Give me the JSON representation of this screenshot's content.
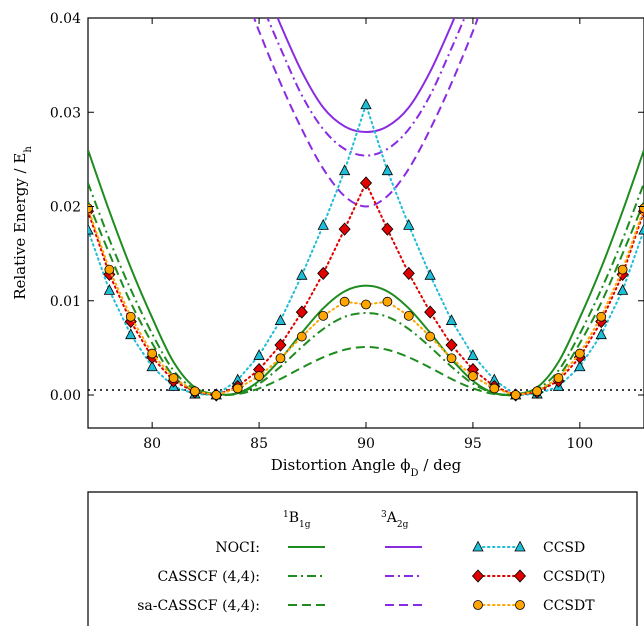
{
  "chart_data": {
    "type": "line",
    "title": "",
    "xlabel": "Distortion Angle ϕ",
    "xlabel_sub": "D",
    "xlabel_unit": " / deg",
    "ylabel": "Relative Energy / E",
    "ylabel_sub": "h",
    "xlim": [
      77.0,
      103.0
    ],
    "ylim": [
      -0.0035,
      0.04
    ],
    "x_ticks": [
      80,
      85,
      90,
      95,
      100
    ],
    "x_tick_labels": [
      "80",
      "85",
      "90",
      "95",
      "100"
    ],
    "y_ticks": [
      0.0,
      0.01,
      0.02,
      0.03,
      0.04
    ],
    "y_tick_labels": [
      "0.00",
      "0.01",
      "0.02",
      "0.03",
      "0.04"
    ],
    "grid": false,
    "legend_placement": "below",
    "legend": {
      "col_b1g": "B",
      "col_b1g_sup": "1",
      "col_b1g_sub": "1g",
      "col_a2g": "A",
      "col_a2g_sup": "3",
      "col_a2g_sub": "2g",
      "row_noci": "NOCI:",
      "row_casscf": "CASSCF (4,4):",
      "row_sacasscf": "sa-CASSCF (4,4):",
      "ccsd": "CCSD",
      "ccsdt_paren": "CCSD(T)",
      "ccsdt": "CCSDT"
    },
    "colors": {
      "b1g": "#1e8c1e",
      "a2g": "#8a2be2",
      "ccsd": "#1fbdd6",
      "ccsd_t": "#e00000",
      "ccsdt": "#ffa500"
    },
    "series": [
      {
        "name": "NOCI",
        "state": "1B1g",
        "style": "solid",
        "points": [
          [
            77,
            0.026
          ],
          [
            78,
            0.0195
          ],
          [
            79,
            0.0135
          ],
          [
            80,
            0.0082
          ],
          [
            81,
            0.0035
          ],
          [
            82,
            0.0008
          ],
          [
            83,
            0.0001
          ],
          [
            84,
            0.0002
          ],
          [
            85,
            0.0015
          ],
          [
            86,
            0.0038
          ],
          [
            87,
            0.0066
          ],
          [
            88,
            0.0092
          ],
          [
            89,
            0.011
          ],
          [
            90,
            0.0116
          ],
          [
            91,
            0.011
          ],
          [
            92,
            0.0092
          ],
          [
            93,
            0.0066
          ],
          [
            94,
            0.0038
          ],
          [
            95,
            0.0015
          ],
          [
            96,
            0.0002
          ],
          [
            97,
            0.0001
          ],
          [
            98,
            0.0008
          ],
          [
            99,
            0.0035
          ],
          [
            100,
            0.0082
          ],
          [
            101,
            0.0135
          ],
          [
            102,
            0.0195
          ],
          [
            103,
            0.026
          ]
        ]
      },
      {
        "name": "CASSCF (4,4)",
        "state": "1B1g",
        "style": "dashdot",
        "points": [
          [
            77,
            0.0225
          ],
          [
            78,
            0.0165
          ],
          [
            79,
            0.0112
          ],
          [
            80,
            0.0065
          ],
          [
            81,
            0.0026
          ],
          [
            82,
            0.0006
          ],
          [
            83,
            0.0
          ],
          [
            84,
            0.0002
          ],
          [
            85,
            0.0012
          ],
          [
            86,
            0.003
          ],
          [
            87,
            0.0051
          ],
          [
            88,
            0.007
          ],
          [
            89,
            0.0083
          ],
          [
            90,
            0.0087
          ],
          [
            91,
            0.0083
          ],
          [
            92,
            0.007
          ],
          [
            93,
            0.0051
          ],
          [
            94,
            0.003
          ],
          [
            95,
            0.0012
          ],
          [
            96,
            0.0002
          ],
          [
            97,
            0.0
          ],
          [
            98,
            0.0006
          ],
          [
            99,
            0.0026
          ],
          [
            100,
            0.0065
          ],
          [
            101,
            0.0112
          ],
          [
            102,
            0.0165
          ],
          [
            103,
            0.0225
          ]
        ]
      },
      {
        "name": "sa-CASSCF (4,4)",
        "state": "1B1g",
        "style": "dashed",
        "points": [
          [
            77,
            0.0205
          ],
          [
            78,
            0.015
          ],
          [
            79,
            0.0098
          ],
          [
            80,
            0.0055
          ],
          [
            81,
            0.002
          ],
          [
            82,
            0.0004
          ],
          [
            83,
            0.0
          ],
          [
            84,
            0.0001
          ],
          [
            85,
            0.0007
          ],
          [
            86,
            0.0017
          ],
          [
            87,
            0.0029
          ],
          [
            88,
            0.004
          ],
          [
            89,
            0.0048
          ],
          [
            90,
            0.0051
          ],
          [
            91,
            0.0048
          ],
          [
            92,
            0.004
          ],
          [
            93,
            0.0029
          ],
          [
            94,
            0.0017
          ],
          [
            95,
            0.0007
          ],
          [
            96,
            0.0001
          ],
          [
            97,
            0.0
          ],
          [
            98,
            0.0004
          ],
          [
            99,
            0.002
          ],
          [
            100,
            0.0055
          ],
          [
            101,
            0.0098
          ],
          [
            102,
            0.015
          ],
          [
            103,
            0.0205
          ]
        ]
      },
      {
        "name": "NOCI",
        "state": "3A2g",
        "style": "solid",
        "points": [
          [
            85.8,
            0.0405
          ],
          [
            86,
            0.0393
          ],
          [
            87,
            0.0343
          ],
          [
            88,
            0.0305
          ],
          [
            89,
            0.0285
          ],
          [
            90,
            0.0279
          ],
          [
            91,
            0.0285
          ],
          [
            92,
            0.0305
          ],
          [
            93,
            0.0343
          ],
          [
            94,
            0.0393
          ],
          [
            94.2,
            0.0405
          ]
        ]
      },
      {
        "name": "CASSCF (4,4)",
        "state": "3A2g",
        "style": "dashdot",
        "points": [
          [
            85.3,
            0.0405
          ],
          [
            86,
            0.0368
          ],
          [
            87,
            0.0318
          ],
          [
            88,
            0.0282
          ],
          [
            89,
            0.0261
          ],
          [
            90,
            0.0254
          ],
          [
            91,
            0.0261
          ],
          [
            92,
            0.0282
          ],
          [
            93,
            0.0318
          ],
          [
            94,
            0.0368
          ],
          [
            94.7,
            0.0405
          ]
        ]
      },
      {
        "name": "sa-CASSCF (4,4)",
        "state": "3A2g",
        "style": "dashed",
        "points": [
          [
            84.7,
            0.0405
          ],
          [
            85,
            0.0386
          ],
          [
            86,
            0.0331
          ],
          [
            87,
            0.0282
          ],
          [
            88,
            0.024
          ],
          [
            89,
            0.0211
          ],
          [
            90,
            0.02
          ],
          [
            91,
            0.0211
          ],
          [
            92,
            0.024
          ],
          [
            93,
            0.0282
          ],
          [
            94,
            0.0331
          ],
          [
            95,
            0.0386
          ],
          [
            95.3,
            0.0405
          ]
        ]
      },
      {
        "name": "CCSD",
        "marker": "triangle",
        "points": [
          [
            77,
            0.0175
          ],
          [
            78,
            0.0111
          ],
          [
            79,
            0.0064
          ],
          [
            80,
            0.003
          ],
          [
            81,
            0.0009
          ],
          [
            82,
            0.0001
          ],
          [
            83,
            0.0
          ],
          [
            84,
            0.0016
          ],
          [
            85,
            0.0042
          ],
          [
            86,
            0.0079
          ],
          [
            87,
            0.0127
          ],
          [
            88,
            0.018
          ],
          [
            89,
            0.0238
          ],
          [
            90,
            0.0308
          ],
          [
            91,
            0.0238
          ],
          [
            92,
            0.018
          ],
          [
            93,
            0.0127
          ],
          [
            94,
            0.0079
          ],
          [
            95,
            0.0042
          ],
          [
            96,
            0.0016
          ],
          [
            97,
            0.0
          ],
          [
            98,
            0.0001
          ],
          [
            99,
            0.0009
          ],
          [
            100,
            0.003
          ],
          [
            101,
            0.0064
          ],
          [
            102,
            0.0111
          ],
          [
            103,
            0.0175
          ]
        ]
      },
      {
        "name": "CCSD(T)",
        "marker": "diamond",
        "points": [
          [
            77,
            0.0195
          ],
          [
            78,
            0.0128
          ],
          [
            79,
            0.0078
          ],
          [
            80,
            0.004
          ],
          [
            81,
            0.0015
          ],
          [
            82,
            0.0003
          ],
          [
            83,
            0.0
          ],
          [
            84,
            0.0009
          ],
          [
            85,
            0.0027
          ],
          [
            86,
            0.0053
          ],
          [
            87,
            0.0088
          ],
          [
            88,
            0.0129
          ],
          [
            89,
            0.0176
          ],
          [
            90,
            0.0225
          ],
          [
            91,
            0.0176
          ],
          [
            92,
            0.0129
          ],
          [
            93,
            0.0088
          ],
          [
            94,
            0.0053
          ],
          [
            95,
            0.0027
          ],
          [
            96,
            0.0009
          ],
          [
            97,
            0.0
          ],
          [
            98,
            0.0003
          ],
          [
            99,
            0.0015
          ],
          [
            100,
            0.004
          ],
          [
            101,
            0.0078
          ],
          [
            102,
            0.0128
          ],
          [
            103,
            0.0195
          ]
        ]
      },
      {
        "name": "CCSDT",
        "marker": "circle",
        "points": [
          [
            77,
            0.0198
          ],
          [
            78,
            0.0133
          ],
          [
            79,
            0.0083
          ],
          [
            80,
            0.0044
          ],
          [
            81,
            0.0018
          ],
          [
            82,
            0.0004
          ],
          [
            83,
            0.0
          ],
          [
            84,
            0.0007
          ],
          [
            85,
            0.002
          ],
          [
            86,
            0.0039
          ],
          [
            87,
            0.0062
          ],
          [
            88,
            0.0084
          ],
          [
            89,
            0.0099
          ],
          [
            90,
            0.0096
          ],
          [
            91,
            0.0099
          ],
          [
            92,
            0.0084
          ],
          [
            93,
            0.0062
          ],
          [
            94,
            0.0039
          ],
          [
            95,
            0.002
          ],
          [
            96,
            0.0007
          ],
          [
            97,
            0.0
          ],
          [
            98,
            0.0004
          ],
          [
            99,
            0.0018
          ],
          [
            100,
            0.0044
          ],
          [
            101,
            0.0083
          ],
          [
            102,
            0.0133
          ],
          [
            103,
            0.0198
          ]
        ]
      }
    ]
  }
}
